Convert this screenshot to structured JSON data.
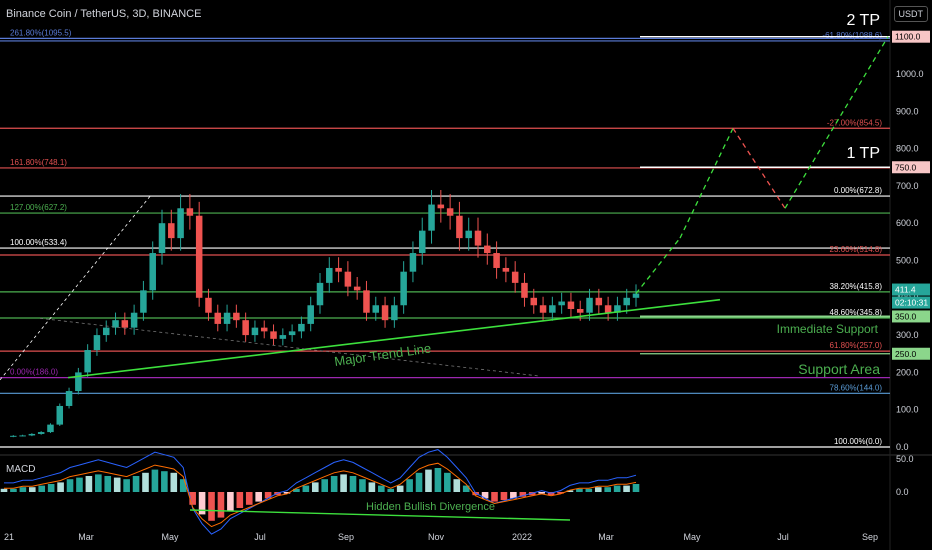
{
  "header": {
    "symbol_title": "Binance Coin / TetherUS, 3D, BINANCE",
    "currency_badge": "USDT"
  },
  "macd_panel": {
    "title": "MACD"
  },
  "chart_data": {
    "type": "candlestick",
    "price_axis": {
      "ticks": [
        0,
        100,
        200,
        300,
        400,
        500,
        600,
        700,
        800,
        900,
        1000
      ],
      "ylim": [
        0,
        1150
      ]
    },
    "time_axis": {
      "labels": [
        "21",
        "Mar",
        "May",
        "Jul",
        "Sep",
        "Nov",
        "2022",
        "Mar",
        "May",
        "Jul",
        "Sep"
      ]
    },
    "price_tags": [
      {
        "value": "1100.0",
        "color": "#f7c6c6",
        "text_color": "#000000"
      },
      {
        "value": "750.0",
        "color": "#f7c6c6",
        "text_color": "#000000"
      },
      {
        "value": "411.4",
        "color": "#26a69a",
        "text_color": "#ffffff"
      },
      {
        "value": "02:10:31",
        "color": "#26a69a",
        "text_color": "#ffffff"
      },
      {
        "value": "350.0",
        "color": "#8bd68b",
        "text_color": "#000000"
      },
      {
        "value": "250.0",
        "color": "#8bd68b",
        "text_color": "#000000"
      }
    ],
    "horizontal_levels": [
      {
        "price": 1095.5,
        "color": "#5a7bd6",
        "label": "261.80%(1095.5)",
        "label_side": "left",
        "label_color": "#5a7bd6"
      },
      {
        "price": 1088.6,
        "color": "#5a7bd6",
        "label": "-61.80%(1088.6)",
        "label_side": "right",
        "label_color": "#5a7bd6"
      },
      {
        "price": 854.5,
        "color": "#e05050",
        "label": "-27.00%(854.5)",
        "label_side": "right",
        "label_color": "#e05050"
      },
      {
        "price": 748.1,
        "color": "#e05050",
        "label": "161.80%(748.1)",
        "label_side": "left",
        "label_color": "#e05050"
      },
      {
        "price": 672.8,
        "color": "#ffffff",
        "label": "0.00%(672.8)",
        "label_side": "right",
        "label_color": "#ffffff"
      },
      {
        "price": 627.2,
        "color": "#4caf50",
        "label": "127.00%(627.2)",
        "label_side": "left",
        "label_color": "#4caf50"
      },
      {
        "price": 533.4,
        "color": "#ffffff",
        "label": "100.00%(533.4)",
        "label_side": "left",
        "label_color": "#ffffff"
      },
      {
        "price": 514.8,
        "color": "#e05050",
        "label": "23.60%(514.8)",
        "label_side": "right",
        "label_color": "#e05050"
      },
      {
        "price": 415.8,
        "color": "#4caf50",
        "label": "38.20%(415.8)",
        "label_side": "right",
        "label_color": "#ffffff"
      },
      {
        "price": 345.8,
        "color": "#4caf50",
        "label": "48.60%(345.8)",
        "label_side": "right",
        "label_color": "#ffffff"
      },
      {
        "price": 257.0,
        "color": "#e05050",
        "label": "61.80%(257.0)",
        "label_side": "right",
        "label_color": "#e05050"
      },
      {
        "price": 186.0,
        "color": "#9c27b0",
        "label": "0.00%(186.0)",
        "label_side": "left",
        "label_color": "#9c27b0"
      },
      {
        "price": 144.0,
        "color": "#5a9bd6",
        "label": "78.60%(144.0)",
        "label_side": "right",
        "label_color": "#5a9bd6"
      },
      {
        "price": 0.0,
        "color": "#ffffff",
        "label": "100.00%(0.0)",
        "label_side": "right",
        "label_color": "#ffffff"
      }
    ],
    "annotations": [
      {
        "text": "2 TP",
        "color": "#ffffff"
      },
      {
        "text": "1 TP",
        "color": "#ffffff"
      },
      {
        "text": "Immediate Support",
        "color": "#4caf50"
      },
      {
        "text": "Support Area",
        "color": "#4caf50"
      },
      {
        "text": "Major Trend Line",
        "color": "#4caf50"
      },
      {
        "text": "Hidden Bullish Divergence",
        "color": "#4caf50"
      }
    ],
    "close_path": [
      28,
      30,
      31,
      35,
      40,
      60,
      110,
      150,
      200,
      260,
      300,
      320,
      340,
      320,
      360,
      420,
      520,
      600,
      560,
      640,
      620,
      400,
      360,
      330,
      360,
      340,
      300,
      320,
      310,
      290,
      300,
      310,
      330,
      380,
      440,
      480,
      470,
      430,
      420,
      360,
      380,
      340,
      380,
      470,
      520,
      580,
      650,
      640,
      620,
      560,
      580,
      540,
      520,
      480,
      470,
      440,
      400,
      380,
      360,
      380,
      390,
      370,
      360,
      400,
      380,
      360,
      380,
      400,
      411.4
    ],
    "projection": [
      411.4,
      560,
      854.5,
      640,
      1100
    ],
    "macd_axis": {
      "ticks": [
        50.0,
        0.0
      ]
    },
    "macd_histogram": [
      2,
      2,
      3,
      3,
      4,
      5,
      6,
      8,
      9,
      10,
      11,
      10,
      9,
      8,
      10,
      12,
      14,
      13,
      12,
      8,
      -8,
      -14,
      -18,
      -16,
      -12,
      -10,
      -8,
      -6,
      -4,
      -2,
      -1,
      2,
      4,
      6,
      8,
      10,
      11,
      10,
      8,
      6,
      4,
      2,
      4,
      8,
      12,
      14,
      15,
      12,
      8,
      4,
      -2,
      -4,
      -6,
      -5,
      -4,
      -3,
      -2,
      -1,
      -2,
      -1,
      1,
      2,
      2,
      3,
      3,
      4,
      4,
      5
    ]
  }
}
